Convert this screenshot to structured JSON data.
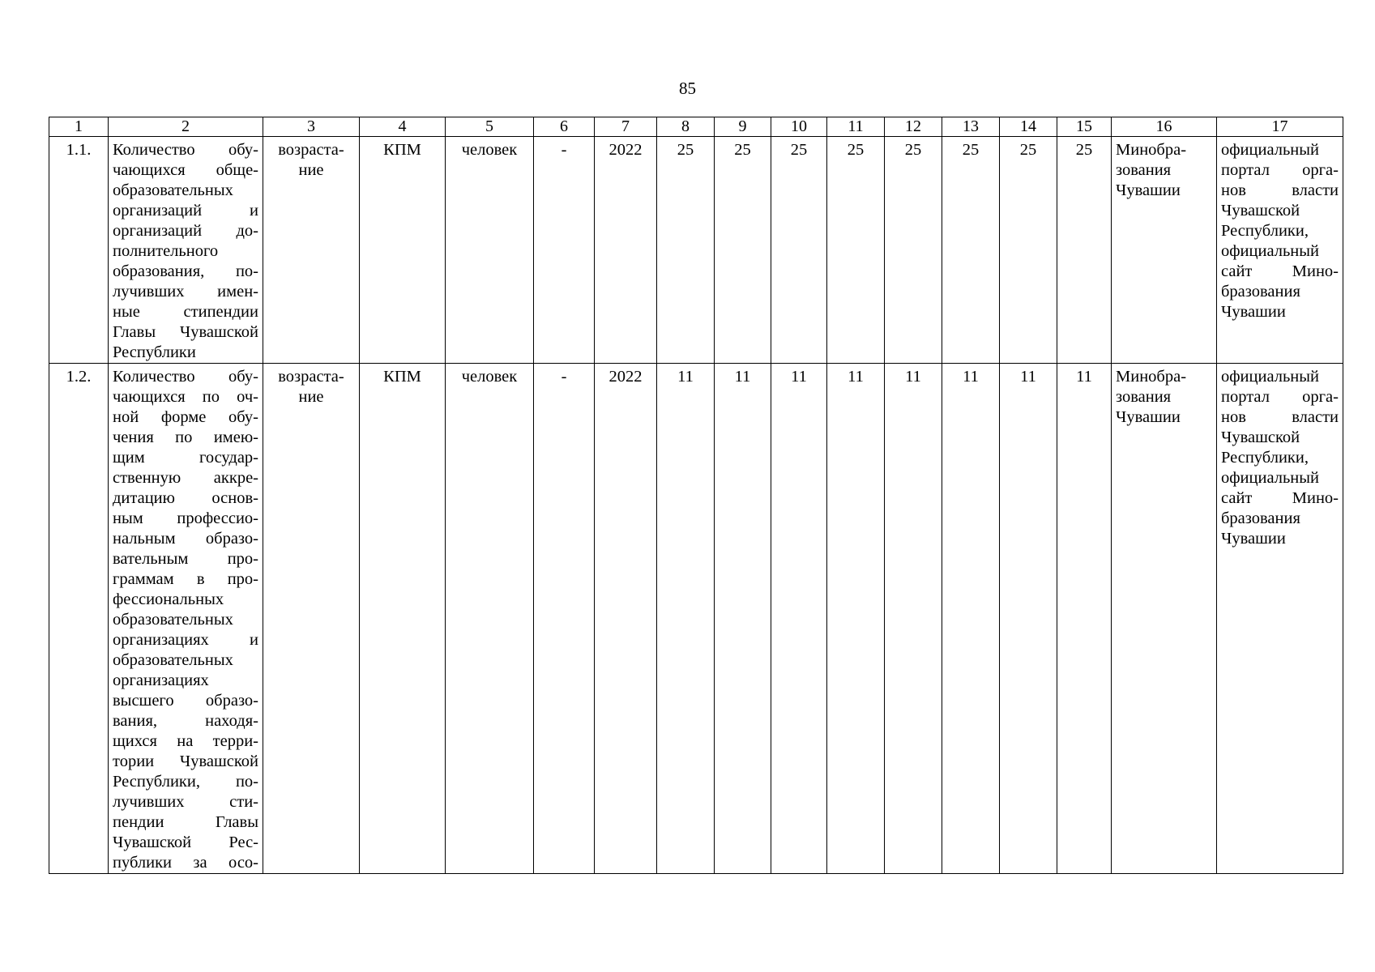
{
  "page": {
    "number": "85"
  },
  "table": {
    "header_cols": [
      "1",
      "2",
      "3",
      "4",
      "5",
      "6",
      "7",
      "8",
      "9",
      "10",
      "11",
      "12",
      "13",
      "14",
      "15",
      "16",
      "17"
    ],
    "rows": [
      {
        "num": "1.1.",
        "name_lines": [
          "Количество обу-",
          "чающихся обще-",
          "образовательных",
          "организаций и",
          "организаций до-",
          "полнительного",
          "образования, по-",
          "лучивших имен-",
          "ные стипендии",
          "Главы Чувашской",
          "Республики"
        ],
        "trend_lines": [
          "возраста-",
          "ние"
        ],
        "method": "КПМ",
        "unit": "человек",
        "dash": "-",
        "base_year": "2022",
        "values": [
          "25",
          "25",
          "25",
          "25",
          "25",
          "25",
          "25",
          "25"
        ],
        "responsible_lines": [
          "Минобра-",
          "зования",
          "Чувашии"
        ],
        "source_lines": [
          "официальный",
          "портал орга-",
          "нов власти",
          "Чувашской",
          "Республики,",
          "официальный",
          "сайт Мино-",
          "бразования",
          "Чувашии"
        ]
      },
      {
        "num": "1.2.",
        "name_lines": [
          "Количество обу-",
          "чающихся по оч-",
          "ной форме обу-",
          "чения по имею-",
          "щим государ-",
          "ственную аккре-",
          "дитацию основ-",
          "ным профессио-",
          "нальным образо-",
          "вательным про-",
          "граммам в про-",
          "фессиональных",
          "образовательных",
          "организациях и",
          "образовательных",
          "организациях",
          "высшего образо-",
          "вания, находя-",
          "щихся на терри-",
          "тории Чувашской",
          "Республики, по-",
          "лучивших сти-",
          "пендии Главы",
          "Чувашской Рес-",
          "публики за осо-"
        ],
        "trend_lines": [
          "возраста-",
          "ние"
        ],
        "method": "КПМ",
        "unit": "человек",
        "dash": "-",
        "base_year": "2022",
        "values": [
          "11",
          "11",
          "11",
          "11",
          "11",
          "11",
          "11",
          "11"
        ],
        "responsible_lines": [
          "Минобра-",
          "зования",
          "Чувашии"
        ],
        "source_lines": [
          "официальный",
          "портал орга-",
          "нов власти",
          "Чувашской",
          "Республики,",
          "официальный",
          "сайт Мино-",
          "бразования",
          "Чувашии"
        ]
      }
    ]
  }
}
